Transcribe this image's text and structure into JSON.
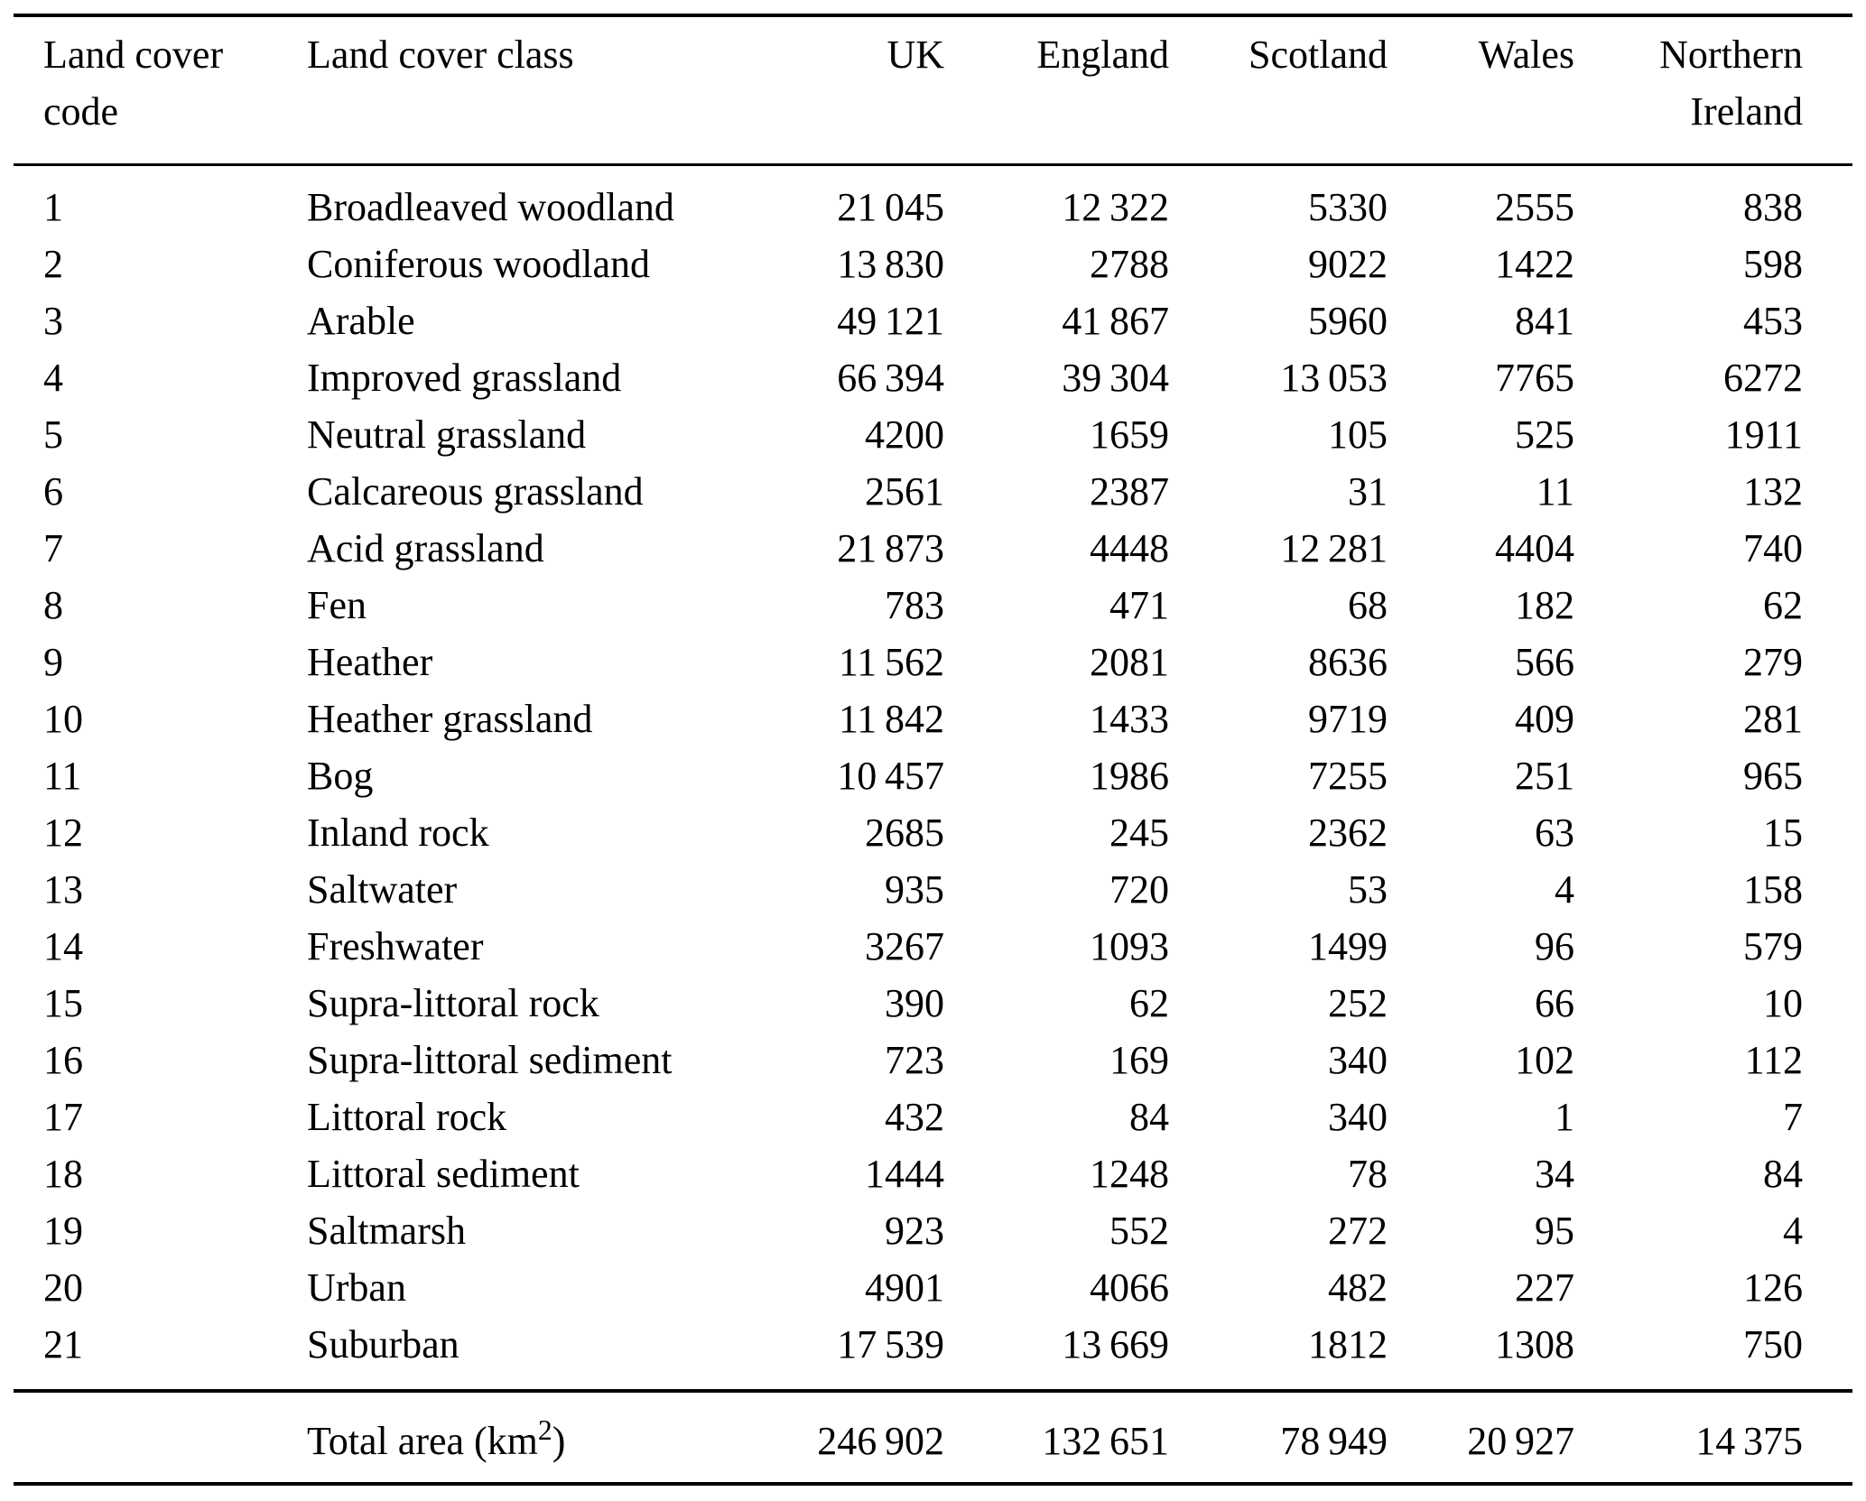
{
  "table": {
    "columns": [
      {
        "key": "code",
        "label": "Land cover\ncode"
      },
      {
        "key": "cls",
        "label": "Land cover class"
      },
      {
        "key": "uk",
        "label": "UK"
      },
      {
        "key": "england",
        "label": "England"
      },
      {
        "key": "scotland",
        "label": "Scotland"
      },
      {
        "key": "wales",
        "label": "Wales"
      },
      {
        "key": "ni",
        "label": "Northern\nIreland"
      }
    ],
    "rows": [
      {
        "code": "1",
        "cls": "Broadleaved woodland",
        "uk": "21 045",
        "england": "12 322",
        "scotland": "5330",
        "wales": "2555",
        "ni": "838"
      },
      {
        "code": "2",
        "cls": "Coniferous woodland",
        "uk": "13 830",
        "england": "2788",
        "scotland": "9022",
        "wales": "1422",
        "ni": "598"
      },
      {
        "code": "3",
        "cls": "Arable",
        "uk": "49 121",
        "england": "41 867",
        "scotland": "5960",
        "wales": "841",
        "ni": "453"
      },
      {
        "code": "4",
        "cls": "Improved grassland",
        "uk": "66 394",
        "england": "39 304",
        "scotland": "13 053",
        "wales": "7765",
        "ni": "6272"
      },
      {
        "code": "5",
        "cls": "Neutral grassland",
        "uk": "4200",
        "england": "1659",
        "scotland": "105",
        "wales": "525",
        "ni": "1911"
      },
      {
        "code": "6",
        "cls": "Calcareous grassland",
        "uk": "2561",
        "england": "2387",
        "scotland": "31",
        "wales": "11",
        "ni": "132"
      },
      {
        "code": "7",
        "cls": "Acid grassland",
        "uk": "21 873",
        "england": "4448",
        "scotland": "12 281",
        "wales": "4404",
        "ni": "740"
      },
      {
        "code": "8",
        "cls": "Fen",
        "uk": "783",
        "england": "471",
        "scotland": "68",
        "wales": "182",
        "ni": "62"
      },
      {
        "code": "9",
        "cls": "Heather",
        "uk": "11 562",
        "england": "2081",
        "scotland": "8636",
        "wales": "566",
        "ni": "279"
      },
      {
        "code": "10",
        "cls": "Heather grassland",
        "uk": "11 842",
        "england": "1433",
        "scotland": "9719",
        "wales": "409",
        "ni": "281"
      },
      {
        "code": "11",
        "cls": "Bog",
        "uk": "10 457",
        "england": "1986",
        "scotland": "7255",
        "wales": "251",
        "ni": "965"
      },
      {
        "code": "12",
        "cls": "Inland rock",
        "uk": "2685",
        "england": "245",
        "scotland": "2362",
        "wales": "63",
        "ni": "15"
      },
      {
        "code": "13",
        "cls": "Saltwater",
        "uk": "935",
        "england": "720",
        "scotland": "53",
        "wales": "4",
        "ni": "158"
      },
      {
        "code": "14",
        "cls": "Freshwater",
        "uk": "3267",
        "england": "1093",
        "scotland": "1499",
        "wales": "96",
        "ni": "579"
      },
      {
        "code": "15",
        "cls": "Supra-littoral rock",
        "uk": "390",
        "england": "62",
        "scotland": "252",
        "wales": "66",
        "ni": "10"
      },
      {
        "code": "16",
        "cls": "Supra-littoral sediment",
        "uk": "723",
        "england": "169",
        "scotland": "340",
        "wales": "102",
        "ni": "112"
      },
      {
        "code": "17",
        "cls": "Littoral rock",
        "uk": "432",
        "england": "84",
        "scotland": "340",
        "wales": "1",
        "ni": "7"
      },
      {
        "code": "18",
        "cls": "Littoral sediment",
        "uk": "1444",
        "england": "1248",
        "scotland": "78",
        "wales": "34",
        "ni": "84"
      },
      {
        "code": "19",
        "cls": "Saltmarsh",
        "uk": "923",
        "england": "552",
        "scotland": "272",
        "wales": "95",
        "ni": "4"
      },
      {
        "code": "20",
        "cls": "Urban",
        "uk": "4901",
        "england": "4066",
        "scotland": "482",
        "wales": "227",
        "ni": "126"
      },
      {
        "code": "21",
        "cls": "Suburban",
        "uk": "17 539",
        "england": "13 669",
        "scotland": "1812",
        "wales": "1308",
        "ni": "750"
      }
    ],
    "total": {
      "label_prefix": "Total area (km",
      "label_sup": "2",
      "label_suffix": ")",
      "uk": "246 902",
      "england": "132 651",
      "scotland": "78 949",
      "wales": "20 927",
      "ni": "14 375"
    }
  }
}
